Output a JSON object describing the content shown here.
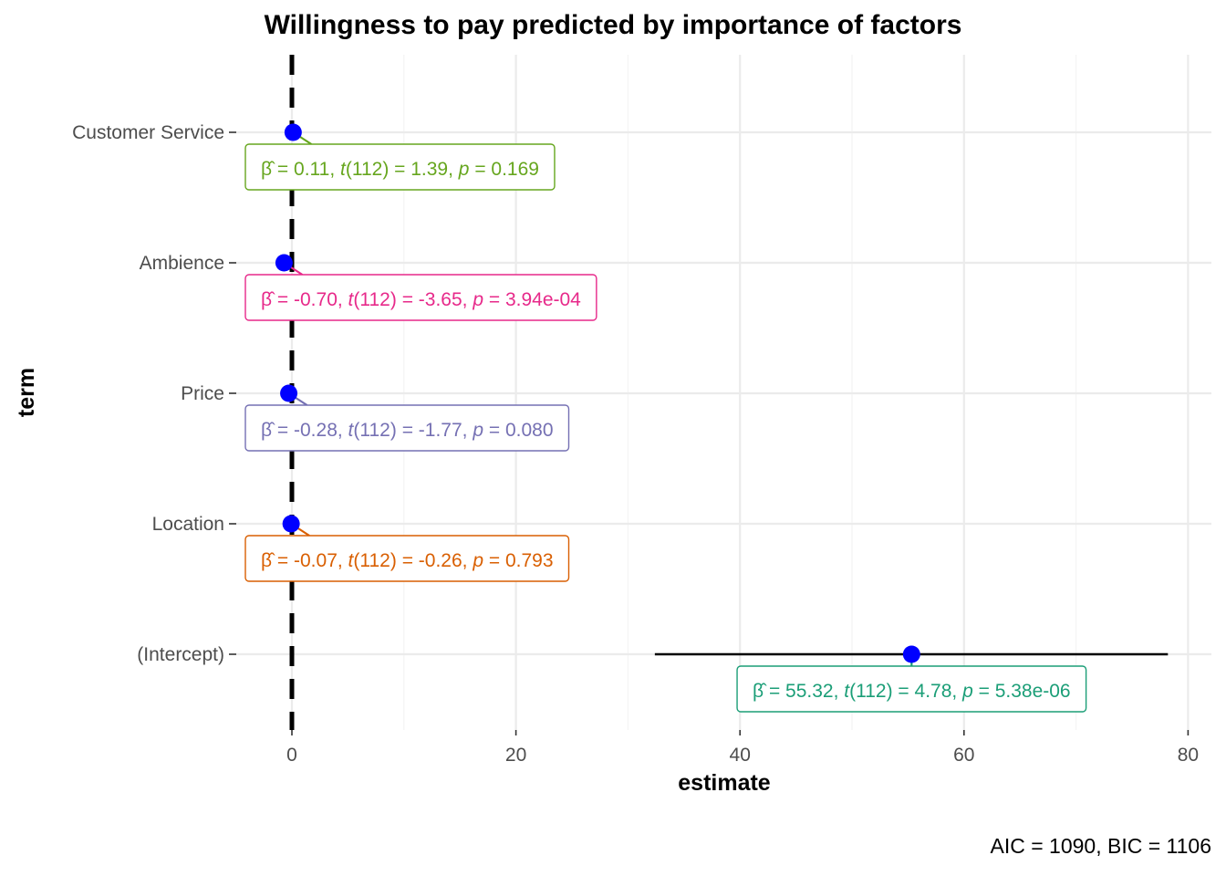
{
  "chart_data": {
    "type": "coefficient_plot",
    "title": "Willingness to pay predicted by importance of factors",
    "xlabel": "estimate",
    "ylabel": "term",
    "xlim": [
      -4.5,
      83.5
    ],
    "x_ticks": [
      0,
      20,
      40,
      60,
      80
    ],
    "reference_line": 0,
    "grid": true,
    "caption": "AIC = 1090, BIC = 1106",
    "terms": [
      {
        "term": "Customer Service",
        "estimate": 0.11,
        "conf_low": -0.05,
        "conf_high": 0.27,
        "color": "#66a61e",
        "beta": "0.11",
        "t_df": "112",
        "t": "1.39",
        "p": "0.169"
      },
      {
        "term": "Ambience",
        "estimate": -0.7,
        "conf_low": -1.08,
        "conf_high": -0.32,
        "color": "#e7298a",
        "beta": "-0.70",
        "t_df": "112",
        "t": "-3.65",
        "p": "3.94e-04"
      },
      {
        "term": "Price",
        "estimate": -0.28,
        "conf_low": -0.59,
        "conf_high": 0.03,
        "color": "#7570b3",
        "beta": "-0.28",
        "t_df": "112",
        "t": "-1.77",
        "p": "0.080"
      },
      {
        "term": "Location",
        "estimate": -0.07,
        "conf_low": -0.6,
        "conf_high": 0.46,
        "color": "#d95f02",
        "beta": "-0.07",
        "t_df": "112",
        "t": "-0.26",
        "p": "0.793"
      },
      {
        "term": "(Intercept)",
        "estimate": 55.32,
        "conf_low": 32.4,
        "conf_high": 78.2,
        "color": "#1b9e77",
        "beta": "55.32",
        "t_df": "112",
        "t": "4.78",
        "p": "5.38e-06"
      }
    ],
    "point_color": "#0000ff"
  }
}
